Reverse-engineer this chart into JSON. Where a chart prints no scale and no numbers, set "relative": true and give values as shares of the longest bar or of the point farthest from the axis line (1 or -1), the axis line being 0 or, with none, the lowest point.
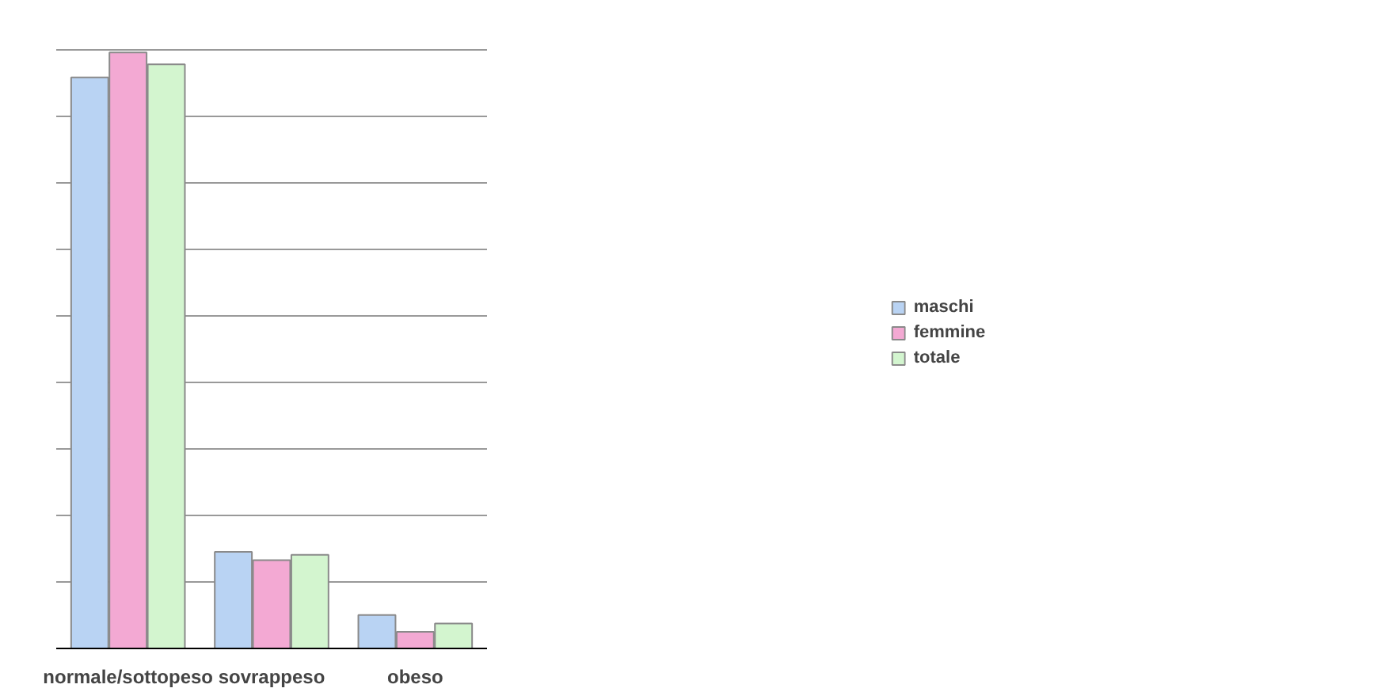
{
  "chart_data": {
    "type": "bar",
    "relative": true,
    "categories": [
      "normale/sottopeso",
      "sovrappeso",
      "obeso"
    ],
    "series": [
      {
        "name": "maschi",
        "color": "#b9d3f3",
        "values": [
          0.958,
          0.162,
          0.056
        ]
      },
      {
        "name": "femmine",
        "color": "#f3a9d3",
        "values": [
          1,
          0.148,
          0.028
        ]
      },
      {
        "name": "totale",
        "color": "#d3f5cf",
        "values": [
          0.98,
          0.157,
          0.042
        ]
      }
    ],
    "grid": "y",
    "legend": "right"
  }
}
